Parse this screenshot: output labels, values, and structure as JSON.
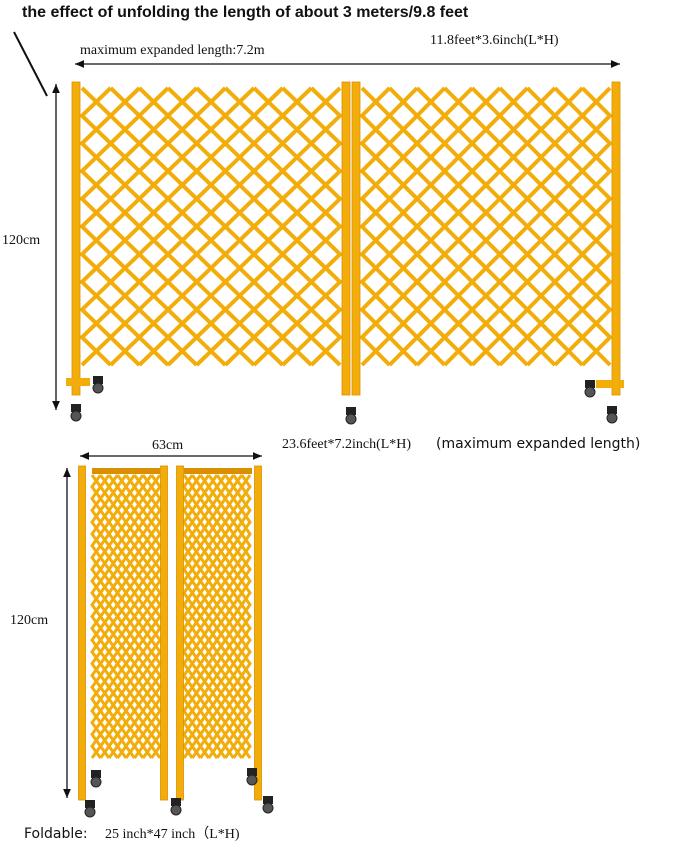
{
  "header": {
    "title": "the effect of unfolding the length of about 3 meters/9.8 feet"
  },
  "expanded": {
    "length_label": "maximum expanded length:7.2m",
    "size_label": "11.8feet*3.6inch(L*H)",
    "height_label": "120cm",
    "caption": "23.6feet*7.2inch(L*H)",
    "caption_note": "(maximum expanded length)"
  },
  "folded": {
    "width_label": "63cm",
    "height_label": "120cm",
    "caption_prefix": "Foldable:",
    "caption_size": "25 inch*47 inch（L*H)"
  }
}
